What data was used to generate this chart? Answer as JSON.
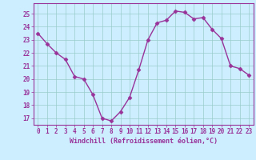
{
  "x": [
    0,
    1,
    2,
    3,
    4,
    5,
    6,
    7,
    8,
    9,
    10,
    11,
    12,
    13,
    14,
    15,
    16,
    17,
    18,
    19,
    20,
    21,
    22,
    23
  ],
  "y": [
    23.5,
    22.7,
    22.0,
    21.5,
    20.2,
    20.0,
    18.8,
    17.0,
    16.8,
    17.5,
    18.6,
    20.7,
    23.0,
    24.3,
    24.5,
    25.2,
    25.1,
    24.6,
    24.7,
    23.8,
    23.1,
    21.0,
    20.8,
    20.3
  ],
  "line_color": "#993399",
  "marker": "D",
  "marker_size": 2.5,
  "linewidth": 1.0,
  "bg_color": "#cceeff",
  "grid_color": "#99cccc",
  "xlabel": "Windchill (Refroidissement éolien,°C)",
  "ylim": [
    16.5,
    25.8
  ],
  "yticks": [
    17,
    18,
    19,
    20,
    21,
    22,
    23,
    24,
    25
  ],
  "xlim": [
    -0.5,
    23.5
  ],
  "xticks": [
    0,
    1,
    2,
    3,
    4,
    5,
    6,
    7,
    8,
    9,
    10,
    11,
    12,
    13,
    14,
    15,
    16,
    17,
    18,
    19,
    20,
    21,
    22,
    23
  ],
  "tick_fontsize": 5.5,
  "label_fontsize": 6.0,
  "tick_color": "#993399",
  "label_color": "#993399",
  "axis_color": "#993399"
}
